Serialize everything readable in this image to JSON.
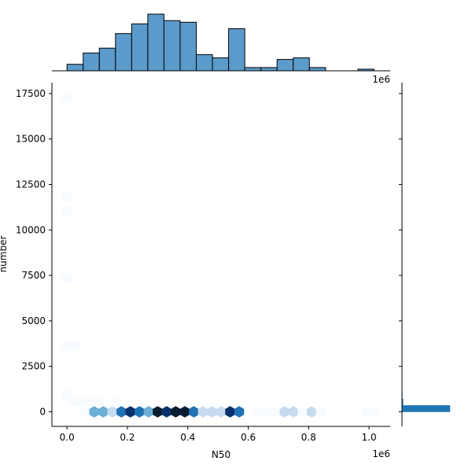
{
  "chart_data": {
    "type": "jointplot",
    "joint": {
      "type": "hexbin",
      "xlabel": "N50",
      "ylabel": "number",
      "xlim": [
        -50000,
        1070000
      ],
      "ylim": [
        -800,
        18100
      ],
      "x_ticks": [
        0.0,
        0.2,
        0.4,
        0.6,
        0.8,
        1.0
      ],
      "x_tick_labels": [
        "0.0",
        "0.2",
        "0.4",
        "0.6",
        "0.8",
        "1.0"
      ],
      "x_offset_text": "1e6",
      "y_ticks": [
        0,
        2500,
        5000,
        7500,
        10000,
        12500,
        15000,
        17500
      ],
      "y_tick_labels": [
        "0",
        "2500",
        "5000",
        "7500",
        "10000",
        "12500",
        "15000",
        "17500"
      ],
      "cells": [
        {
          "x": 0,
          "y": 17300,
          "count": 1
        },
        {
          "x": 0,
          "y": 11850,
          "count": 1
        },
        {
          "x": 0,
          "y": 11000,
          "count": 1
        },
        {
          "x": 0,
          "y": 7300,
          "count": 1
        },
        {
          "x": 30000,
          "y": 3700,
          "count": 1
        },
        {
          "x": 0,
          "y": 3650,
          "count": 1
        },
        {
          "x": 0,
          "y": 1000,
          "count": 2
        },
        {
          "x": 15000,
          "y": 550,
          "count": 2
        },
        {
          "x": 45000,
          "y": 550,
          "count": 1
        },
        {
          "x": 75000,
          "y": 550,
          "count": 1
        },
        {
          "x": 105000,
          "y": 550,
          "count": 1
        },
        {
          "x": 165000,
          "y": 550,
          "count": 1
        },
        {
          "x": 60000,
          "y": 0,
          "count": 2
        },
        {
          "x": 90000,
          "y": 0,
          "count": 8
        },
        {
          "x": 120000,
          "y": 0,
          "count": 9
        },
        {
          "x": 150000,
          "y": 0,
          "count": 6
        },
        {
          "x": 180000,
          "y": 0,
          "count": 13
        },
        {
          "x": 210000,
          "y": 0,
          "count": 21
        },
        {
          "x": 240000,
          "y": 0,
          "count": 15
        },
        {
          "x": 270000,
          "y": 0,
          "count": 11
        },
        {
          "x": 300000,
          "y": 0,
          "count": 24
        },
        {
          "x": 330000,
          "y": 0,
          "count": 20
        },
        {
          "x": 360000,
          "y": 0,
          "count": 22
        },
        {
          "x": 390000,
          "y": 0,
          "count": 23
        },
        {
          "x": 420000,
          "y": 0,
          "count": 13
        },
        {
          "x": 450000,
          "y": 0,
          "count": 5
        },
        {
          "x": 480000,
          "y": 0,
          "count": 4
        },
        {
          "x": 510000,
          "y": 0,
          "count": 4
        },
        {
          "x": 540000,
          "y": 0,
          "count": 17
        },
        {
          "x": 570000,
          "y": 0,
          "count": 15
        },
        {
          "x": 630000,
          "y": 0,
          "count": 1
        },
        {
          "x": 660000,
          "y": 0,
          "count": 1
        },
        {
          "x": 690000,
          "y": 0,
          "count": 1
        },
        {
          "x": 720000,
          "y": 0,
          "count": 6
        },
        {
          "x": 750000,
          "y": 0,
          "count": 4
        },
        {
          "x": 780000,
          "y": 0,
          "count": 2
        },
        {
          "x": 810000,
          "y": 0,
          "count": 4
        },
        {
          "x": 840000,
          "y": 0,
          "count": 1
        },
        {
          "x": 990000,
          "y": 0,
          "count": 1
        },
        {
          "x": 1020000,
          "y": 0,
          "count": 1
        }
      ],
      "colormap": [
        "#f7fbff",
        "#c6dbef",
        "#6baed6",
        "#2171b5",
        "#08306b",
        "#081d30"
      ]
    },
    "marginal_x": {
      "type": "histogram",
      "bin_edges": [
        0,
        53500,
        107000,
        160500,
        214000,
        267500,
        321000,
        374500,
        428000,
        481500,
        535000,
        588500,
        642000,
        695500,
        749000,
        802500,
        856000,
        909500,
        963000,
        1016500,
        1070000
      ],
      "counts": [
        4,
        11,
        14,
        23,
        29,
        35,
        31,
        30,
        10,
        8,
        26,
        2,
        2,
        7,
        8,
        2,
        0,
        0,
        1,
        0
      ],
      "color": "#5b9bcb",
      "edgecolor": "#000000"
    },
    "marginal_y": {
      "type": "histogram",
      "bin_edges": [
        0,
        350,
        700,
        1050
      ],
      "counts": [
        290,
        6,
        2
      ],
      "color": "#1f77b4"
    }
  }
}
